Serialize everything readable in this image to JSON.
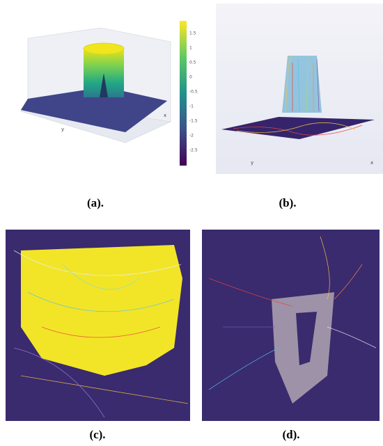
{
  "figure": {
    "panels": [
      {
        "caption": "(a).",
        "colorbar_ticks": [
          1.5,
          1,
          0.5,
          0,
          -0.5,
          -1,
          -1.5,
          -2,
          -2.5
        ],
        "axis_labels": [
          "y",
          "x"
        ]
      },
      {
        "caption": "(b).",
        "axis_labels": [
          "y",
          "x"
        ]
      },
      {
        "caption": "(c)."
      },
      {
        "caption": "(d)."
      }
    ]
  }
}
